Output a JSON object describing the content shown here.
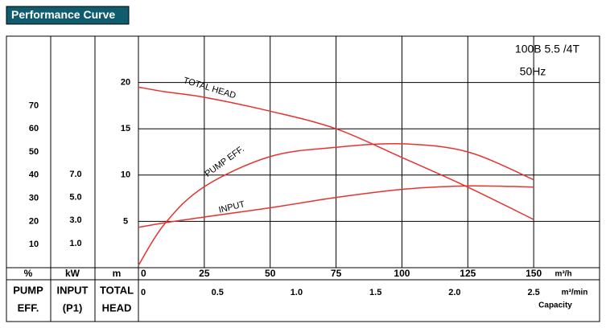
{
  "chart_data": {
    "type": "line",
    "title": "Performance Curve",
    "model": "100B  5.5 /4T",
    "frequency": "50Hz",
    "x": [
      0,
      10,
      25,
      50,
      75,
      100,
      125,
      150
    ],
    "xlim": [
      0,
      175
    ],
    "xticks": [
      0,
      25,
      50,
      75,
      100,
      125,
      150
    ],
    "x_unit": "m³/h",
    "x2lim": [
      0,
      2.9167
    ],
    "x2ticks": [
      0,
      0.5,
      {
        "value": 1,
        "label": "1.0"
      },
      1.5,
      {
        "value": 2,
        "label": "2.0"
      },
      2.5
    ],
    "x2_unit": "m³/min",
    "x_label": "Capacity",
    "ylim": [
      0,
      25
    ],
    "yticks": [
      5,
      10,
      15,
      20
    ],
    "y_unit": "m",
    "y_title": [
      "TOTAL",
      "HEAD"
    ],
    "y2lim": [
      0,
      100
    ],
    "y2ticks": [
      10,
      20,
      30,
      40,
      50,
      60,
      70
    ],
    "y2_unit": "%",
    "y2_title": [
      "PUMP",
      "EFF."
    ],
    "y3lim": [
      -1.1,
      19
    ],
    "y3ticks": [
      {
        "value": 1,
        "label": "1.0"
      },
      {
        "value": 3,
        "label": "3.0"
      },
      {
        "value": 5,
        "label": "5.0"
      },
      {
        "value": 7,
        "label": "7.0"
      }
    ],
    "y3_unit": "kW",
    "y3_title": [
      "INPUT",
      "(P1)"
    ],
    "grid": true,
    "series": [
      {
        "name": "TOTAL HEAD",
        "color": "#e8322e",
        "axis": "y",
        "values": [
          19.5,
          19.0,
          18.4,
          16.9,
          15.0,
          11.9,
          8.7,
          5.2
        ]
      },
      {
        "name": "PUMP EFF.",
        "color": "#e8322e",
        "axis": "y2",
        "values": [
          1,
          19,
          35,
          48,
          52,
          53.5,
          50,
          38
        ]
      },
      {
        "name": "INPUT",
        "color": "#e8322e",
        "axis": "y3",
        "values": [
          2.4,
          2.8,
          3.3,
          4.1,
          5.0,
          5.7,
          6.0,
          5.9
        ]
      }
    ]
  }
}
